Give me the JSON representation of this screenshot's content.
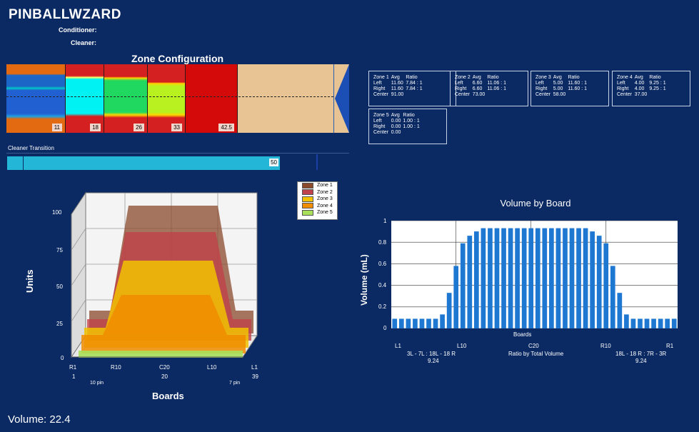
{
  "app": {
    "title": "PINBALLWZARD",
    "conditioner_label": "Conditioner:",
    "cleaner_label": "Cleaner:"
  },
  "zone_config": {
    "title": "Zone Configuration",
    "segments": [
      {
        "name": "zone-1",
        "label": "11"
      },
      {
        "name": "zone-2",
        "label": "18"
      },
      {
        "name": "zone-3",
        "label": "26"
      },
      {
        "name": "zone-4",
        "label": "33"
      },
      {
        "name": "zone-5",
        "label": "42.5"
      }
    ]
  },
  "zone_info": [
    {
      "title": "Zone 1",
      "avg": "Avg",
      "ratio": "Ratio",
      "rows": [
        [
          "Left",
          "11.60",
          "7.84 : 1"
        ],
        [
          "Right",
          "11.60",
          "7.84 : 1"
        ],
        [
          "Center",
          "91.00",
          ""
        ]
      ]
    },
    {
      "title": "Zone 2",
      "avg": "Avg",
      "ratio": "Ratio",
      "rows": [
        [
          "Left",
          "6.60",
          "11.06 : 1"
        ],
        [
          "Right",
          "6.60",
          "11.06 : 1"
        ],
        [
          "Center",
          "73.00",
          ""
        ]
      ]
    },
    {
      "title": "Zone 3",
      "avg": "Avg",
      "ratio": "Ratio",
      "rows": [
        [
          "Left",
          "5.00",
          "11.60 : 1"
        ],
        [
          "Right",
          "5.00",
          "11.60 : 1"
        ],
        [
          "Center",
          "58.00",
          ""
        ]
      ]
    },
    {
      "title": "Zone 4",
      "avg": "Avg",
      "ratio": "Ratio",
      "rows": [
        [
          "Left",
          "4.00",
          "9.25 : 1"
        ],
        [
          "Right",
          "4.00",
          "9.25 : 1"
        ],
        [
          "Center",
          "37.00",
          ""
        ]
      ]
    },
    {
      "title": "Zone 5",
      "avg": "Avg",
      "ratio": "Ratio",
      "rows": [
        [
          "Left",
          "0.00",
          "1.00 : 1"
        ],
        [
          "Right",
          "0.00",
          "1.00 : 1"
        ],
        [
          "Center",
          "0.00",
          ""
        ]
      ]
    }
  ],
  "cleaner_transition": {
    "label": "Cleaner Transition",
    "value": "50"
  },
  "units_chart": {
    "ylabel": "Units",
    "xlabel": "Boards",
    "y_ticks": [
      "100",
      "75",
      "50",
      "25",
      "0"
    ],
    "x_ticks": [
      "R1",
      "R10",
      "C20",
      "L10",
      "L1"
    ],
    "x_numbers": [
      "1",
      "20",
      "39"
    ],
    "pin_left": "10 pin",
    "pin_right": "7 pin",
    "legend": [
      "Zone 1",
      "Zone 2",
      "Zone 3",
      "Zone 4",
      "Zone 5"
    ],
    "colors": [
      "#8b4a2c",
      "#c0424a",
      "#f2c200",
      "#f08c00",
      "#a8e05a"
    ]
  },
  "chart_data": {
    "type": "bar",
    "title": "Volume by Board",
    "xlabel": "Boards",
    "ylabel": "Volume (mL)",
    "ylim": [
      0,
      1
    ],
    "y_ticks": [
      "1",
      "0.8",
      "0.6",
      "0.4",
      "0.2",
      "0"
    ],
    "x_tick_labels": [
      "L1",
      "L10",
      "C20",
      "R10",
      "R1"
    ],
    "values": [
      0.09,
      0.09,
      0.09,
      0.09,
      0.09,
      0.09,
      0.09,
      0.13,
      0.33,
      0.58,
      0.79,
      0.86,
      0.9,
      0.93,
      0.93,
      0.93,
      0.93,
      0.93,
      0.93,
      0.93,
      0.93,
      0.93,
      0.93,
      0.93,
      0.93,
      0.93,
      0.93,
      0.93,
      0.93,
      0.9,
      0.86,
      0.79,
      0.58,
      0.33,
      0.13,
      0.09,
      0.09,
      0.09,
      0.09,
      0.09,
      0.09,
      0.09
    ],
    "bar_color": "#1e78d2",
    "footer_left": [
      "3L - 7L : 18L - 18 R",
      "9.24"
    ],
    "footer_center": "Ratio by Total Volume",
    "footer_right": [
      "18L - 18 R : 7R - 3R",
      "9.24"
    ]
  },
  "volume": {
    "label": "Volume: 22.4"
  }
}
